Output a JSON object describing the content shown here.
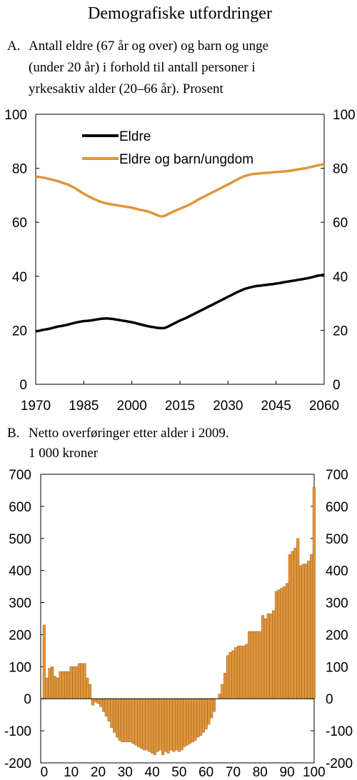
{
  "header": {
    "title": "Demografiske utfordringer"
  },
  "chart_data": [
    {
      "type": "line",
      "panel": "A.",
      "title": "Antall eldre (67 år og over) og barn og unge (under 20 år) i forhold til antall personer i yrkesaktiv alder (20–66 år). Prosent",
      "title_lines": [
        "Antall eldre (67 år og over) og barn og unge",
        "(under 20 år) i forhold til antall personer i",
        "yrkesaktiv alder (20–66 år). Prosent"
      ],
      "xlabel": "",
      "ylabel": "",
      "xlim": [
        1970,
        2060
      ],
      "ylim": [
        0,
        100
      ],
      "x_ticks": [
        1970,
        1985,
        2000,
        2015,
        2030,
        2045,
        2060
      ],
      "y_ticks": [
        0,
        20,
        40,
        60,
        80,
        100
      ],
      "grid": false,
      "legend_position": "top-left",
      "series": [
        {
          "name": "Eldre",
          "color": "#000000",
          "x": [
            1970,
            1971,
            1972,
            1973,
            1974,
            1975,
            1976,
            1977,
            1978,
            1979,
            1980,
            1981,
            1982,
            1983,
            1984,
            1985,
            1986,
            1987,
            1988,
            1989,
            1990,
            1991,
            1992,
            1993,
            1994,
            1995,
            1996,
            1997,
            1998,
            1999,
            2000,
            2001,
            2002,
            2003,
            2004,
            2005,
            2006,
            2007,
            2008,
            2009,
            2010,
            2011,
            2012,
            2013,
            2014,
            2015,
            2016,
            2017,
            2018,
            2019,
            2020,
            2021,
            2022,
            2023,
            2024,
            2025,
            2026,
            2027,
            2028,
            2029,
            2030,
            2031,
            2032,
            2033,
            2034,
            2035,
            2036,
            2037,
            2038,
            2039,
            2040,
            2041,
            2042,
            2043,
            2044,
            2045,
            2046,
            2047,
            2048,
            2049,
            2050,
            2051,
            2052,
            2053,
            2054,
            2055,
            2056,
            2057,
            2058,
            2059,
            2060
          ],
          "values": [
            19.6,
            19.8,
            20.1,
            20.3,
            20.5,
            20.8,
            21.1,
            21.4,
            21.6,
            21.8,
            22.1,
            22.4,
            22.7,
            23.0,
            23.2,
            23.4,
            23.5,
            23.6,
            23.8,
            24.0,
            24.2,
            24.3,
            24.4,
            24.3,
            24.2,
            24.0,
            23.8,
            23.6,
            23.4,
            23.2,
            23.0,
            22.7,
            22.4,
            22.1,
            21.8,
            21.5,
            21.3,
            21.1,
            20.9,
            20.8,
            20.8,
            21.2,
            21.8,
            22.4,
            23.0,
            23.6,
            24.1,
            24.6,
            25.2,
            25.8,
            26.4,
            27.0,
            27.6,
            28.2,
            28.8,
            29.4,
            30.0,
            30.6,
            31.2,
            31.8,
            32.4,
            33.0,
            33.6,
            34.2,
            34.7,
            35.2,
            35.6,
            35.9,
            36.2,
            36.4,
            36.5,
            36.7,
            36.8,
            37.0,
            37.1,
            37.3,
            37.5,
            37.7,
            37.9,
            38.1,
            38.3,
            38.5,
            38.7,
            38.9,
            39.1,
            39.3,
            39.6,
            39.9,
            40.2,
            40.4,
            40.6
          ]
        },
        {
          "name": "Eldre og barn/ungdom",
          "color": "#e0953a",
          "x": [
            1970,
            1971,
            1972,
            1973,
            1974,
            1975,
            1976,
            1977,
            1978,
            1979,
            1980,
            1981,
            1982,
            1983,
            1984,
            1985,
            1986,
            1987,
            1988,
            1989,
            1990,
            1991,
            1992,
            1993,
            1994,
            1995,
            1996,
            1997,
            1998,
            1999,
            2000,
            2001,
            2002,
            2003,
            2004,
            2005,
            2006,
            2007,
            2008,
            2009,
            2010,
            2011,
            2012,
            2013,
            2014,
            2015,
            2016,
            2017,
            2018,
            2019,
            2020,
            2021,
            2022,
            2023,
            2024,
            2025,
            2026,
            2027,
            2028,
            2029,
            2030,
            2031,
            2032,
            2033,
            2034,
            2035,
            2036,
            2037,
            2038,
            2039,
            2040,
            2041,
            2042,
            2043,
            2044,
            2045,
            2046,
            2047,
            2048,
            2049,
            2050,
            2051,
            2052,
            2053,
            2054,
            2055,
            2056,
            2057,
            2058,
            2059,
            2060
          ],
          "values": [
            76.8,
            76.8,
            76.6,
            76.4,
            76.1,
            75.8,
            75.5,
            75.2,
            74.8,
            74.4,
            74.0,
            73.4,
            72.8,
            72.1,
            71.3,
            70.6,
            69.9,
            69.3,
            68.7,
            68.2,
            67.7,
            67.3,
            67.0,
            66.8,
            66.6,
            66.4,
            66.2,
            66.0,
            65.8,
            65.6,
            65.4,
            65.1,
            64.8,
            64.5,
            64.3,
            64.0,
            63.6,
            63.1,
            62.6,
            62.2,
            62.3,
            62.8,
            63.4,
            64.0,
            64.5,
            65.0,
            65.5,
            66.0,
            66.6,
            67.2,
            67.9,
            68.6,
            69.2,
            69.8,
            70.4,
            71.0,
            71.6,
            72.2,
            72.8,
            73.4,
            74.0,
            74.6,
            75.3,
            75.9,
            76.5,
            77.0,
            77.4,
            77.7,
            77.9,
            78.0,
            78.1,
            78.2,
            78.3,
            78.4,
            78.5,
            78.6,
            78.7,
            78.8,
            78.9,
            79.0,
            79.2,
            79.4,
            79.6,
            79.8,
            80.0,
            80.2,
            80.5,
            80.8,
            81.1,
            81.3,
            81.5
          ]
        }
      ]
    },
    {
      "type": "bar",
      "panel": "B.",
      "title": "Netto overføringer etter alder i 2009. 1 000 kroner",
      "title_lines": [
        "Netto overføringer etter alder i 2009.",
        "1 000 kroner"
      ],
      "xlabel": "",
      "ylabel": "",
      "xlim": [
        0,
        100
      ],
      "ylim": [
        -200,
        700
      ],
      "x_ticks": [
        0,
        10,
        20,
        30,
        40,
        50,
        60,
        70,
        80,
        90,
        100
      ],
      "y_ticks": [
        -200,
        -100,
        0,
        100,
        200,
        300,
        400,
        500,
        600,
        700
      ],
      "grid": false,
      "bar_color": "#e0953a",
      "categories": [
        0,
        1,
        2,
        3,
        4,
        5,
        6,
        7,
        8,
        9,
        10,
        11,
        12,
        13,
        14,
        15,
        16,
        17,
        18,
        19,
        20,
        21,
        22,
        23,
        24,
        25,
        26,
        27,
        28,
        29,
        30,
        31,
        32,
        33,
        34,
        35,
        36,
        37,
        38,
        39,
        40,
        41,
        42,
        43,
        44,
        45,
        46,
        47,
        48,
        49,
        50,
        51,
        52,
        53,
        54,
        55,
        56,
        57,
        58,
        59,
        60,
        61,
        62,
        63,
        64,
        65,
        66,
        67,
        68,
        69,
        70,
        71,
        72,
        73,
        74,
        75,
        76,
        77,
        78,
        79,
        80,
        81,
        82,
        83,
        84,
        85,
        86,
        87,
        88,
        89,
        90,
        91,
        92,
        93,
        94,
        95,
        96,
        97,
        98,
        99,
        100
      ],
      "values": [
        230,
        65,
        95,
        100,
        70,
        65,
        85,
        85,
        85,
        85,
        100,
        100,
        100,
        110,
        110,
        110,
        65,
        45,
        -20,
        -10,
        -15,
        -25,
        -40,
        -55,
        -70,
        -90,
        -105,
        -120,
        -130,
        -135,
        -135,
        -135,
        -135,
        -140,
        -145,
        -150,
        -155,
        -160,
        -160,
        -165,
        -170,
        -175,
        -165,
        -160,
        -175,
        -165,
        -170,
        -160,
        -165,
        -160,
        -165,
        -160,
        -150,
        -145,
        -140,
        -135,
        -130,
        -120,
        -115,
        -105,
        -95,
        -80,
        -60,
        -40,
        0,
        15,
        45,
        80,
        135,
        145,
        150,
        160,
        165,
        165,
        165,
        170,
        210,
        210,
        210,
        210,
        210,
        260,
        250,
        265,
        265,
        275,
        335,
        340,
        345,
        350,
        360,
        450,
        460,
        470,
        500,
        415,
        420,
        420,
        430,
        450,
        660
      ]
    }
  ]
}
